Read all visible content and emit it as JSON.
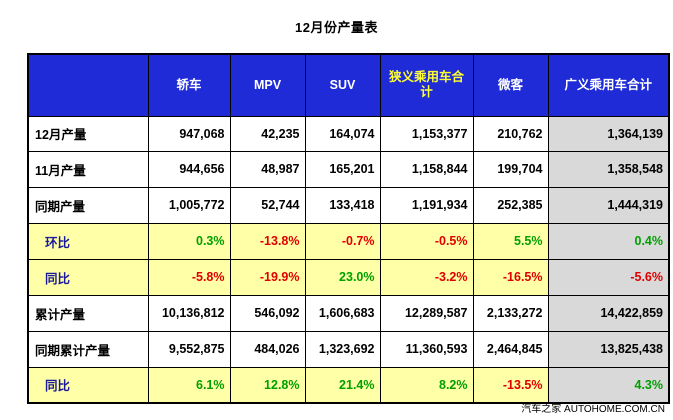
{
  "title": "12月份产量表",
  "footer": "汽车之家 AUTOHOME.COM.CN",
  "columns": [
    "",
    "轿车",
    "MPV",
    "SUV",
    "狭义乘用车合计",
    "微客",
    "广义乘用车合计"
  ],
  "rows": [
    {
      "label": "12月产量",
      "type": "value",
      "cells": [
        "947,068",
        "42,235",
        "164,074",
        "1,153,377",
        "210,762",
        "1,364,139"
      ]
    },
    {
      "label": "11月产量",
      "type": "value",
      "cells": [
        "944,656",
        "48,987",
        "165,201",
        "1,158,844",
        "199,704",
        "1,358,548"
      ]
    },
    {
      "label": "同期产量",
      "type": "value",
      "cells": [
        "1,005,772",
        "52,744",
        "133,418",
        "1,191,934",
        "252,385",
        "1,444,319"
      ]
    },
    {
      "label": "环比",
      "type": "ratio",
      "cells": [
        "0.3%",
        "-13.8%",
        "-0.7%",
        "-0.5%",
        "5.5%",
        "0.4%"
      ]
    },
    {
      "label": "同比",
      "type": "ratio",
      "cells": [
        "-5.8%",
        "-19.9%",
        "23.0%",
        "-3.2%",
        "-16.5%",
        "-5.6%"
      ]
    },
    {
      "label": "累计产量",
      "type": "value",
      "cells": [
        "10,136,812",
        "546,092",
        "1,606,683",
        "12,289,587",
        "2,133,272",
        "14,422,859"
      ]
    },
    {
      "label": "同期累计产量",
      "type": "value",
      "cells": [
        "9,552,875",
        "484,026",
        "1,323,692",
        "11,360,593",
        "2,464,845",
        "13,825,438"
      ]
    },
    {
      "label": "同比",
      "type": "ratio",
      "cells": [
        "6.1%",
        "12.8%",
        "21.4%",
        "8.2%",
        "-13.5%",
        "4.3%"
      ]
    }
  ],
  "colors": {
    "header_bg": "#1f2bd6",
    "header_text": "#ffffff",
    "header_highlight": "#ffff33",
    "ratio_bg": "#ffffa8",
    "total_bg": "#d9d9d9",
    "positive": "#00a000",
    "negative": "#e00000"
  },
  "chart_data": {
    "type": "table",
    "title": "12月份产量表",
    "columns": [
      "轿车",
      "MPV",
      "SUV",
      "狭义乘用车合计",
      "微客",
      "广义乘用车合计"
    ],
    "rows": [
      {
        "label": "12月产量",
        "values": [
          947068,
          42235,
          164074,
          1153377,
          210762,
          1364139
        ]
      },
      {
        "label": "11月产量",
        "values": [
          944656,
          48987,
          165201,
          1158844,
          199704,
          1358548
        ]
      },
      {
        "label": "同期产量",
        "values": [
          1005772,
          52744,
          133418,
          1191934,
          252385,
          1444319
        ]
      },
      {
        "label": "环比",
        "values": [
          "0.3%",
          "-13.8%",
          "-0.7%",
          "-0.5%",
          "5.5%",
          "0.4%"
        ]
      },
      {
        "label": "同比",
        "values": [
          "-5.8%",
          "-19.9%",
          "23.0%",
          "-3.2%",
          "-16.5%",
          "-5.6%"
        ]
      },
      {
        "label": "累计产量",
        "values": [
          10136812,
          546092,
          1606683,
          12289587,
          2133272,
          14422859
        ]
      },
      {
        "label": "同期累计产量",
        "values": [
          9552875,
          484026,
          1323692,
          11360593,
          2464845,
          13825438
        ]
      },
      {
        "label": "同比",
        "values": [
          "6.1%",
          "12.8%",
          "21.4%",
          "8.2%",
          "-13.5%",
          "4.3%"
        ]
      }
    ]
  }
}
